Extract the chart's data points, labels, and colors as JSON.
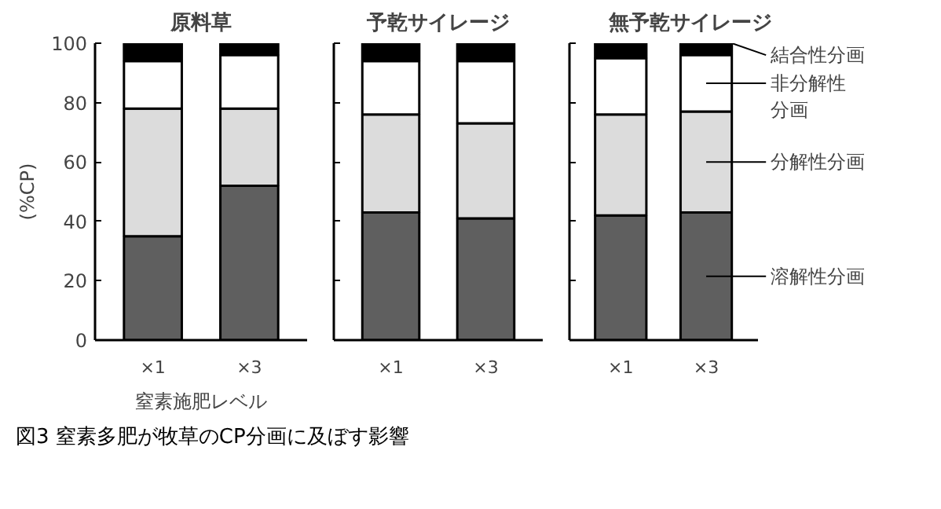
{
  "chart_data": [
    {
      "type": "bar",
      "stacked": true,
      "title": "原料草",
      "xlabel": "窒素施肥レベル",
      "ylabel": "(%CP)",
      "categories": [
        "×1",
        "×3"
      ],
      "ylim": [
        0,
        100
      ],
      "yticks": [
        0,
        20,
        40,
        60,
        80,
        100
      ],
      "grid": false,
      "annotations": [
        "図3  窒素多肥が牧草のCP分画に及ぼす影響"
      ],
      "series": [
        {
          "color": "#5f5f5f",
          "values": [
            35,
            52
          ]
        },
        {
          "color": "#dcdcdc",
          "values": [
            43,
            26
          ]
        },
        {
          "color": "#ffffff",
          "values": [
            16,
            18
          ]
        },
        {
          "color": "#000000",
          "values": [
            6,
            4
          ]
        }
      ]
    },
    {
      "type": "bar",
      "stacked": true,
      "title": "予乾サイレージ",
      "categories": [
        "×1",
        "×3"
      ],
      "ylim": [
        0,
        100
      ],
      "yticks": [
        0,
        20,
        40,
        60,
        80,
        100
      ],
      "tick_labels": "x",
      "grid": false,
      "series": [
        {
          "color": "#5f5f5f",
          "values": [
            43,
            41
          ]
        },
        {
          "color": "#dcdcdc",
          "values": [
            33,
            32
          ]
        },
        {
          "color": "#ffffff",
          "values": [
            18,
            21
          ]
        },
        {
          "color": "#000000",
          "values": [
            6,
            6
          ]
        }
      ]
    },
    {
      "type": "bar",
      "stacked": true,
      "title": "無予乾サイレージ",
      "categories": [
        "×1",
        "×3"
      ],
      "ylim": [
        0,
        100
      ],
      "yticks": [
        0,
        20,
        40,
        60,
        80,
        100
      ],
      "tick_labels": "x",
      "grid": false,
      "legend": "right",
      "series": [
        {
          "name": "溶解性分画",
          "color": "#5f5f5f",
          "values": [
            42,
            43
          ]
        },
        {
          "name": "分解性分画",
          "color": "#dcdcdc",
          "values": [
            34,
            34
          ]
        },
        {
          "name": "非分解性分画",
          "color": "#ffffff",
          "values": [
            19,
            19
          ]
        },
        {
          "name": "結合性分画",
          "color": "#000000",
          "values": [
            5,
            4
          ]
        }
      ]
    }
  ]
}
